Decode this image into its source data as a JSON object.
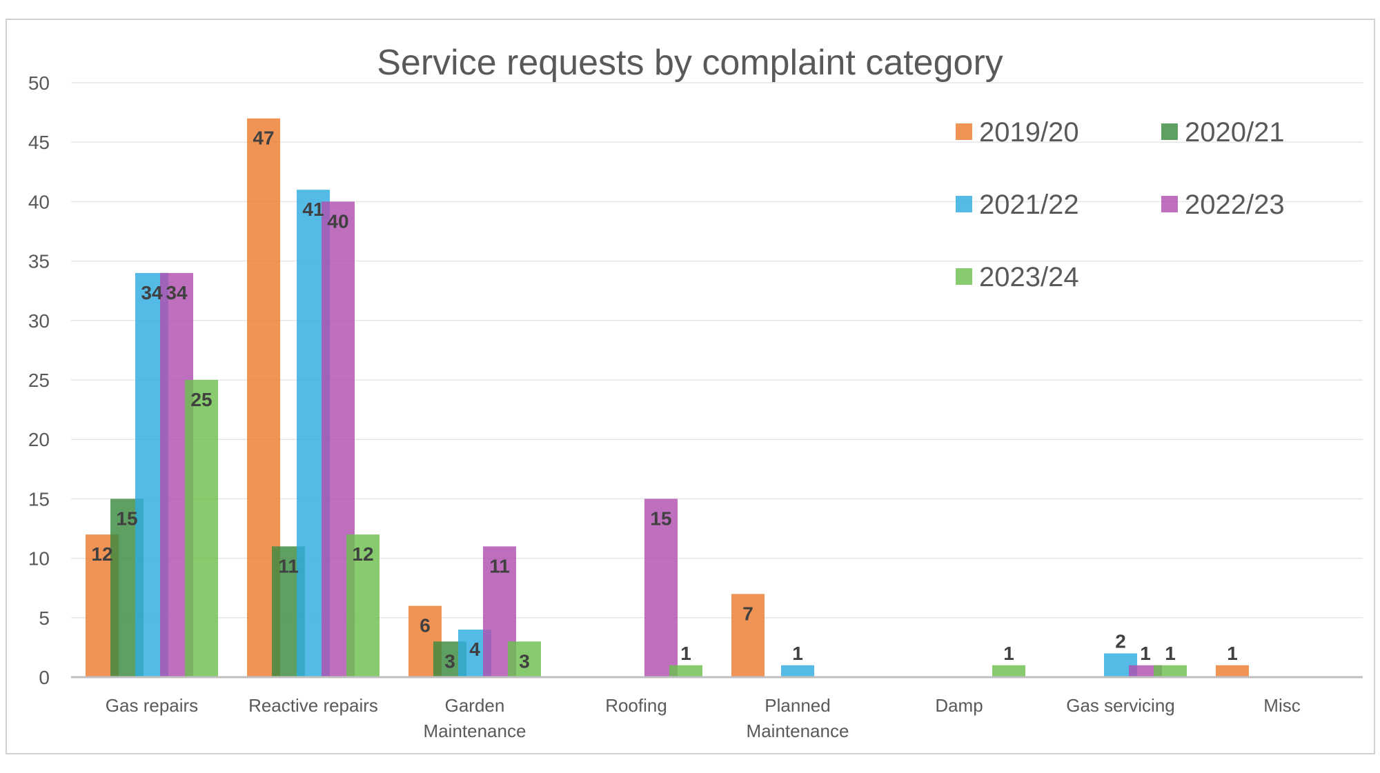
{
  "chart_data": {
    "type": "bar",
    "title": "Service requests by complaint category",
    "xlabel": "",
    "ylabel": "",
    "ylim": [
      0,
      50
    ],
    "yticks": [
      0,
      5,
      10,
      15,
      20,
      25,
      30,
      35,
      40,
      45,
      50
    ],
    "grid": true,
    "legend_position": "top-right",
    "categories": [
      [
        "Gas repairs"
      ],
      [
        "Reactive  repairs"
      ],
      [
        "Garden",
        "Maintenance"
      ],
      [
        "Roofing"
      ],
      [
        "Planned",
        "Maintenance"
      ],
      [
        "Damp"
      ],
      [
        "Gas servicing"
      ],
      [
        "Misc"
      ]
    ],
    "series": [
      {
        "name": "2019/20",
        "color": "#ED7D31",
        "values": [
          12,
          47,
          6,
          null,
          7,
          null,
          null,
          1
        ]
      },
      {
        "name": "2020/21",
        "color": "#3A8A3F",
        "values": [
          15,
          11,
          3,
          null,
          null,
          null,
          null,
          null
        ]
      },
      {
        "name": "2021/22",
        "color": "#2EACE0",
        "values": [
          34,
          41,
          4,
          null,
          1,
          null,
          2,
          null
        ]
      },
      {
        "name": "2022/23",
        "color": "#B04FB0",
        "values": [
          34,
          40,
          11,
          15,
          null,
          null,
          1,
          null
        ]
      },
      {
        "name": "2023/24",
        "color": "#6CBF4E",
        "values": [
          25,
          12,
          3,
          1,
          null,
          1,
          1,
          null
        ]
      }
    ]
  }
}
